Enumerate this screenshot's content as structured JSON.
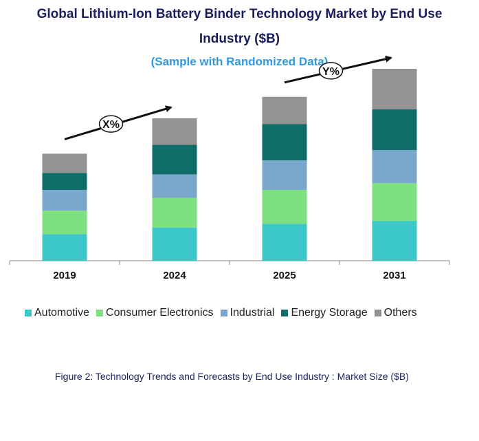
{
  "title_line1": "Global Lithium-Ion Battery Binder Technology Market by End Use",
  "title_line2": "Industry ($B)",
  "subtitle": "(Sample with Randomized Data)",
  "caption": "Figure 2: Technology  Trends  and Forecasts by  End Use Industry   : Market Size ($B)",
  "chart_data": {
    "type": "bar",
    "stacked": true,
    "categories": [
      "2019",
      "2024",
      "2025",
      "2031"
    ],
    "series": [
      {
        "name": "Automotive",
        "color": "#3cc8c8",
        "values": [
          3.6,
          4.5,
          5.0,
          5.4
        ]
      },
      {
        "name": "Consumer Electronics",
        "color": "#7ee07e",
        "values": [
          3.2,
          4.0,
          4.6,
          5.1
        ]
      },
      {
        "name": "Industrial",
        "color": "#7ba7cc",
        "values": [
          2.8,
          3.2,
          4.0,
          4.5
        ]
      },
      {
        "name": "Energy Storage",
        "color": "#0f6e6a",
        "values": [
          2.3,
          4.0,
          4.9,
          5.5
        ]
      },
      {
        "name": "Others",
        "color": "#939393",
        "values": [
          2.6,
          3.6,
          3.7,
          5.5
        ]
      }
    ],
    "ylim": [
      0,
      26
    ],
    "annotations": [
      {
        "label": "X%",
        "from": "2019",
        "to": "2024"
      },
      {
        "label": "Y%",
        "from": "2025",
        "to": "2031"
      }
    ],
    "legend_position": "bottom"
  }
}
